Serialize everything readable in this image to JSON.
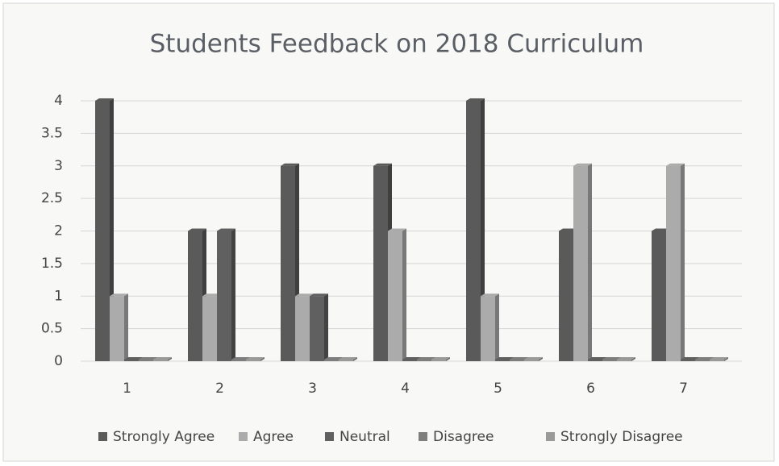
{
  "chart_data": {
    "type": "bar",
    "title": "Students Feedback on 2018 Curriculum",
    "categories": [
      "1",
      "2",
      "3",
      "4",
      "5",
      "6",
      "7"
    ],
    "series": [
      {
        "name": "Strongly Agree",
        "color": "#5a5a5a",
        "values": [
          4,
          2,
          3,
          3,
          4,
          2,
          2
        ]
      },
      {
        "name": "Agree",
        "color": "#ababab",
        "values": [
          1,
          1,
          1,
          2,
          1,
          3,
          3
        ]
      },
      {
        "name": "Neutral",
        "color": "#606060",
        "values": [
          0,
          2,
          1,
          0,
          0,
          0,
          0
        ]
      },
      {
        "name": "Disagree",
        "color": "#7e7e7e",
        "values": [
          0,
          0,
          0,
          0,
          0,
          0,
          0
        ]
      },
      {
        "name": "Strongly Disagree",
        "color": "#9a9a9a",
        "values": [
          0,
          0,
          0,
          0,
          0,
          0,
          0
        ]
      }
    ],
    "ylim": [
      0,
      4
    ],
    "yticks": [
      0,
      0.5,
      1,
      1.5,
      2,
      2.5,
      3,
      3.5,
      4
    ],
    "grid": true,
    "legend": "bottom"
  }
}
